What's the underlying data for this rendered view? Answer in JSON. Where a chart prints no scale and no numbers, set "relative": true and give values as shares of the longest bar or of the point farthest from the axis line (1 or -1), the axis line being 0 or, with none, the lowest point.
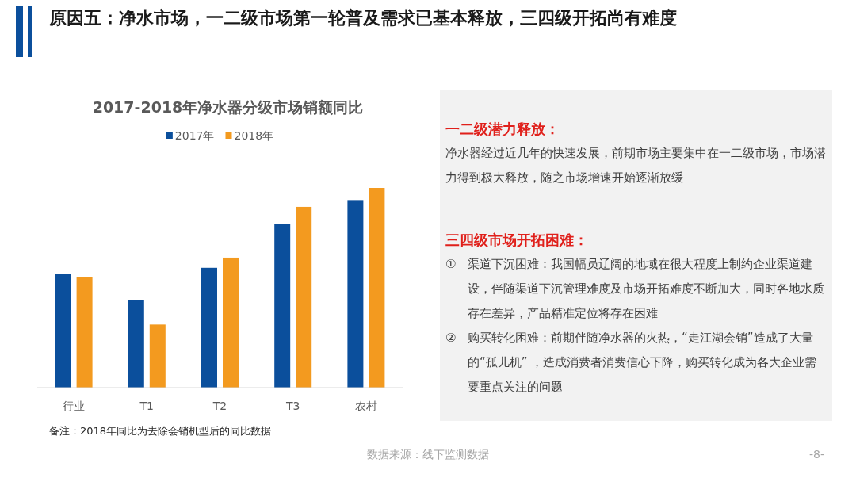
{
  "chart_data": [
    {
      "type": "other",
      "title": "原因五：净水市场，一二级市场第一轮普及需求已基本释放，三四级开拓尚有难度",
      "annotations": [
        "数据来源：线下监测数据",
        "-8-"
      ]
    },
    {
      "type": "bar",
      "title": "2017-2018年净水器分级市场销额同比",
      "relative": true,
      "legend": "top",
      "categories": [
        "行业",
        "T1",
        "T2",
        "T3",
        "农村"
      ],
      "series": [
        {
          "name": "2017年",
          "color": "#0b4f9c",
          "values": [
            0.571,
            0.438,
            0.6,
            0.819,
            0.939
          ]
        },
        {
          "name": "2018年",
          "color": "#f39a1f",
          "values": [
            0.552,
            0.316,
            0.651,
            0.905,
            1
          ]
        }
      ],
      "annotations": [
        "备注：2018年同比为去除会销机型后的同比数据"
      ]
    },
    {
      "type": "other",
      "title": "一二级潜力释放：",
      "annotations": [
        "净水器经过近几年的快速发展，前期市场主要集中在一二级市场，市场潜力得到极大释放，随之市场增速开始逐渐放缓"
      ]
    },
    {
      "type": "other",
      "title": "三四级市场开拓困难：",
      "annotations": [
        "① 渠道下沉困难：我国幅员辽阔的地域在很大程度上制约企业渠道建设，伴随渠道下沉管理难度及市场开拓难度不断加大，同时各地水质存在差异，产品精准定位将存在困难",
        "② 购买转化困难：前期伴随净水器的火热，“走江湖会销”造成了大量的“孤儿机” ，造成消费者消费信心下降，购买转化成为各大企业需要重点关注的问题"
      ]
    }
  ]
}
